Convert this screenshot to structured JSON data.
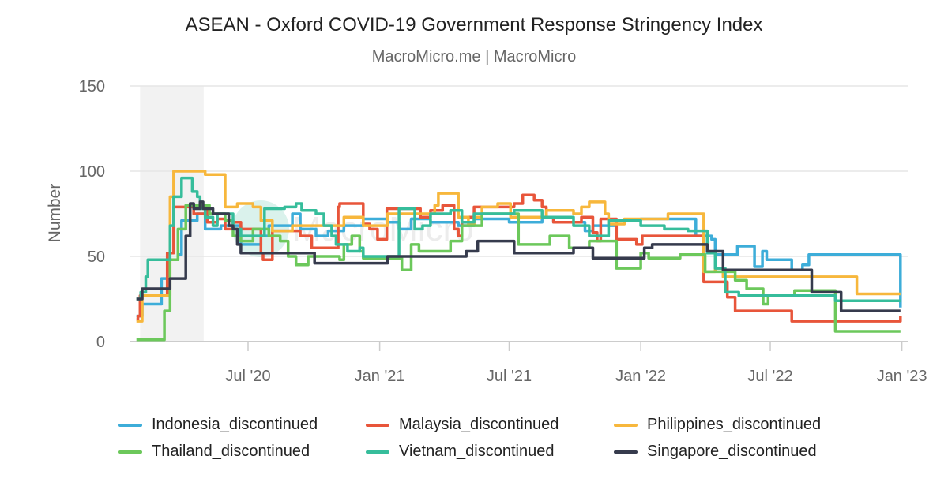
{
  "chart_data": {
    "type": "line",
    "step": true,
    "title": "ASEAN - Oxford COVID-19 Government Response Stringency Index",
    "subtitle": "MacroMicro.me | MacroMicro",
    "watermark": "MacroMicro",
    "xlabel": "",
    "ylabel": "Number",
    "ylim": [
      0,
      150
    ],
    "yticks": [
      "0",
      "50",
      "100",
      "150"
    ],
    "xlim": [
      "2020-01-20",
      "2023-01-05"
    ],
    "xticks": [
      {
        "date": "2020-07-01",
        "label": "Jul '20"
      },
      {
        "date": "2021-01-01",
        "label": "Jan '21"
      },
      {
        "date": "2021-07-01",
        "label": "Jul '21"
      },
      {
        "date": "2022-01-01",
        "label": "Jan '22"
      },
      {
        "date": "2022-07-01",
        "label": "Jul '22"
      },
      {
        "date": "2023-01-01",
        "label": "Jan '23"
      }
    ],
    "grid": true,
    "legend_position": "bottom",
    "shaded_periods": [
      [
        "2020-02-01",
        "2020-04-30"
      ]
    ],
    "series": [
      {
        "name": "Indonesia_discontinued",
        "color": "#3DADD9",
        "points": [
          [
            "2020-01-27",
            15
          ],
          [
            "2020-02-04",
            22
          ],
          [
            "2020-03-02",
            37
          ],
          [
            "2020-03-12",
            48
          ],
          [
            "2020-03-25",
            51
          ],
          [
            "2020-03-30",
            71
          ],
          [
            "2020-04-21",
            75
          ],
          [
            "2020-05-02",
            66
          ],
          [
            "2020-05-24",
            68
          ],
          [
            "2020-06-21",
            57
          ],
          [
            "2020-07-19",
            62
          ],
          [
            "2020-07-30",
            68
          ],
          [
            "2020-09-01",
            75
          ],
          [
            "2020-09-12",
            66
          ],
          [
            "2020-10-04",
            62
          ],
          [
            "2020-10-21",
            65
          ],
          [
            "2020-11-12",
            68
          ],
          [
            "2020-12-09",
            72
          ],
          [
            "2021-01-12",
            70
          ],
          [
            "2021-01-28",
            66
          ],
          [
            "2021-02-14",
            72
          ],
          [
            "2021-03-13",
            70
          ],
          [
            "2021-04-21",
            68
          ],
          [
            "2021-05-13",
            72
          ],
          [
            "2021-07-01",
            70
          ],
          [
            "2021-08-16",
            73
          ],
          [
            "2021-09-01",
            70
          ],
          [
            "2021-10-15",
            65
          ],
          [
            "2021-10-26",
            68
          ],
          [
            "2021-11-28",
            71
          ],
          [
            "2022-01-01",
            72
          ],
          [
            "2022-03-19",
            62
          ],
          [
            "2022-04-10",
            60
          ],
          [
            "2022-04-15",
            51
          ],
          [
            "2022-05-16",
            56
          ],
          [
            "2022-06-09",
            44
          ],
          [
            "2022-06-20",
            53
          ],
          [
            "2022-06-26",
            48
          ],
          [
            "2022-07-31",
            42
          ],
          [
            "2022-08-15",
            45
          ],
          [
            "2022-08-24",
            51
          ],
          [
            "2022-12-30",
            20
          ]
        ]
      },
      {
        "name": "Malaysia_discontinued",
        "color": "#E8553A",
        "points": [
          [
            "2020-01-27",
            13
          ],
          [
            "2020-01-29",
            15
          ],
          [
            "2020-02-01",
            27
          ],
          [
            "2020-03-10",
            52
          ],
          [
            "2020-03-19",
            79
          ],
          [
            "2020-04-16",
            75
          ],
          [
            "2020-05-02",
            78
          ],
          [
            "2020-05-05",
            70
          ],
          [
            "2020-05-19",
            72
          ],
          [
            "2020-05-30",
            66
          ],
          [
            "2020-06-10",
            70
          ],
          [
            "2020-06-21",
            66
          ],
          [
            "2020-07-19",
            52
          ],
          [
            "2020-07-22",
            48
          ],
          [
            "2020-08-04",
            65
          ],
          [
            "2020-09-12",
            62
          ],
          [
            "2020-09-28",
            55
          ],
          [
            "2020-11-04",
            79
          ],
          [
            "2020-11-06",
            81
          ],
          [
            "2020-12-09",
            69
          ],
          [
            "2020-12-18",
            66
          ],
          [
            "2020-12-29",
            60
          ],
          [
            "2021-01-11",
            78
          ],
          [
            "2021-02-27",
            73
          ],
          [
            "2021-03-13",
            77
          ],
          [
            "2021-03-30",
            80
          ],
          [
            "2021-04-15",
            66
          ],
          [
            "2021-04-21",
            62
          ],
          [
            "2021-04-26",
            73
          ],
          [
            "2021-05-13",
            79
          ],
          [
            "2021-07-08",
            81
          ],
          [
            "2021-07-20",
            86
          ],
          [
            "2021-08-05",
            83
          ],
          [
            "2021-08-16",
            79
          ],
          [
            "2021-08-22",
            73
          ],
          [
            "2021-09-01",
            70
          ],
          [
            "2021-10-10",
            73
          ],
          [
            "2021-10-26",
            64
          ],
          [
            "2021-11-01",
            59
          ],
          [
            "2021-11-06",
            72
          ],
          [
            "2021-11-28",
            60
          ],
          [
            "2021-12-26",
            57
          ],
          [
            "2022-01-03",
            62
          ],
          [
            "2022-03-30",
            35
          ],
          [
            "2022-05-02",
            26
          ],
          [
            "2022-05-13",
            18
          ],
          [
            "2022-07-31",
            12
          ],
          [
            "2022-12-29",
            12
          ],
          [
            "2022-12-30",
            15
          ]
        ]
      },
      {
        "name": "Philippines_discontinued",
        "color": "#F7B73C",
        "points": [
          [
            "2020-01-27",
            12
          ],
          [
            "2020-02-04",
            27
          ],
          [
            "2020-03-14",
            85
          ],
          [
            "2020-03-19",
            100
          ],
          [
            "2020-05-02",
            98
          ],
          [
            "2020-05-30",
            79
          ],
          [
            "2020-06-16",
            81
          ],
          [
            "2020-07-08",
            79
          ],
          [
            "2020-07-19",
            71
          ],
          [
            "2020-08-04",
            65
          ],
          [
            "2020-09-01",
            68
          ],
          [
            "2020-11-12",
            73
          ],
          [
            "2020-12-09",
            68
          ],
          [
            "2021-01-12",
            75
          ],
          [
            "2021-03-19",
            80
          ],
          [
            "2021-03-24",
            87
          ],
          [
            "2021-04-21",
            73
          ],
          [
            "2021-05-05",
            69
          ],
          [
            "2021-05-13",
            73
          ],
          [
            "2021-05-24",
            79
          ],
          [
            "2021-06-15",
            81
          ],
          [
            "2021-07-03",
            73
          ],
          [
            "2021-08-22",
            77
          ],
          [
            "2021-09-29",
            75
          ],
          [
            "2021-10-10",
            79
          ],
          [
            "2021-10-21",
            82
          ],
          [
            "2021-11-12",
            75
          ],
          [
            "2021-11-17",
            69
          ],
          [
            "2021-12-09",
            72
          ],
          [
            "2022-02-08",
            75
          ],
          [
            "2022-03-30",
            41
          ],
          [
            "2022-04-15",
            43
          ],
          [
            "2022-04-26",
            38
          ],
          [
            "2022-10-30",
            28
          ],
          [
            "2022-12-30",
            28
          ]
        ]
      },
      {
        "name": "Thailand_discontinued",
        "color": "#6CC85B",
        "points": [
          [
            "2020-01-27",
            1
          ],
          [
            "2020-03-06",
            18
          ],
          [
            "2020-03-14",
            48
          ],
          [
            "2020-03-25",
            66
          ],
          [
            "2020-04-05",
            80
          ],
          [
            "2020-05-08",
            75
          ],
          [
            "2020-05-30",
            71
          ],
          [
            "2020-06-10",
            62
          ],
          [
            "2020-06-21",
            59
          ],
          [
            "2020-07-08",
            66
          ],
          [
            "2020-07-30",
            62
          ],
          [
            "2020-08-15",
            59
          ],
          [
            "2020-08-26",
            50
          ],
          [
            "2020-09-06",
            45
          ],
          [
            "2020-09-23",
            50
          ],
          [
            "2020-11-06",
            48
          ],
          [
            "2020-11-12",
            57
          ],
          [
            "2020-11-23",
            62
          ],
          [
            "2020-12-04",
            53
          ],
          [
            "2020-12-09",
            49
          ],
          [
            "2021-02-01",
            42
          ],
          [
            "2021-02-14",
            57
          ],
          [
            "2021-02-25",
            53
          ],
          [
            "2021-04-10",
            59
          ],
          [
            "2021-04-26",
            68
          ],
          [
            "2021-05-24",
            75
          ],
          [
            "2021-07-14",
            57
          ],
          [
            "2021-08-27",
            62
          ],
          [
            "2021-09-23",
            55
          ],
          [
            "2021-10-21",
            59
          ],
          [
            "2021-11-28",
            43
          ],
          [
            "2022-01-01",
            52
          ],
          [
            "2022-01-12",
            49
          ],
          [
            "2022-02-25",
            51
          ],
          [
            "2022-04-01",
            41
          ],
          [
            "2022-05-13",
            36
          ],
          [
            "2022-05-29",
            31
          ],
          [
            "2022-06-21",
            22
          ],
          [
            "2022-06-28",
            27
          ],
          [
            "2022-08-04",
            30
          ],
          [
            "2022-09-30",
            6
          ],
          [
            "2022-12-30",
            6
          ]
        ]
      },
      {
        "name": "Vietnam_discontinued",
        "color": "#36BD9B",
        "points": [
          [
            "2020-01-27",
            25
          ],
          [
            "2020-02-02",
            29
          ],
          [
            "2020-02-09",
            38
          ],
          [
            "2020-02-12",
            48
          ],
          [
            "2020-03-14",
            68
          ],
          [
            "2020-03-19",
            85
          ],
          [
            "2020-03-30",
            96
          ],
          [
            "2020-04-14",
            88
          ],
          [
            "2020-04-21",
            85
          ],
          [
            "2020-04-25",
            78
          ],
          [
            "2020-05-02",
            73
          ],
          [
            "2020-05-13",
            68
          ],
          [
            "2020-05-19",
            75
          ],
          [
            "2020-06-10",
            66
          ],
          [
            "2020-06-21",
            62
          ],
          [
            "2020-07-24",
            78
          ],
          [
            "2020-08-21",
            79
          ],
          [
            "2020-09-06",
            81
          ],
          [
            "2020-09-14",
            77
          ],
          [
            "2020-10-04",
            75
          ],
          [
            "2020-10-15",
            68
          ],
          [
            "2020-10-26",
            62
          ],
          [
            "2020-11-01",
            57
          ],
          [
            "2020-11-17",
            53
          ],
          [
            "2020-12-04",
            55
          ],
          [
            "2020-12-09",
            50
          ],
          [
            "2021-01-28",
            78
          ],
          [
            "2021-02-19",
            66
          ],
          [
            "2021-03-02",
            68
          ],
          [
            "2021-03-13",
            75
          ],
          [
            "2021-04-10",
            77
          ],
          [
            "2021-04-26",
            70
          ],
          [
            "2021-05-13",
            75
          ],
          [
            "2021-07-08",
            77
          ],
          [
            "2021-08-16",
            73
          ],
          [
            "2021-09-29",
            68
          ],
          [
            "2021-10-21",
            62
          ],
          [
            "2021-11-17",
            71
          ],
          [
            "2022-01-01",
            68
          ],
          [
            "2022-02-03",
            66
          ],
          [
            "2022-03-08",
            65
          ],
          [
            "2022-04-04",
            52
          ],
          [
            "2022-04-15",
            43
          ],
          [
            "2022-04-29",
            29
          ],
          [
            "2022-05-18",
            27
          ],
          [
            "2022-09-30",
            24
          ],
          [
            "2022-12-30",
            24
          ]
        ]
      },
      {
        "name": "Singapore_discontinued",
        "color": "#363B4D",
        "points": [
          [
            "2020-01-27",
            25
          ],
          [
            "2020-02-04",
            31
          ],
          [
            "2020-03-14",
            37
          ],
          [
            "2020-04-05",
            62
          ],
          [
            "2020-04-11",
            81
          ],
          [
            "2020-04-16",
            78
          ],
          [
            "2020-04-25",
            82
          ],
          [
            "2020-04-29",
            78
          ],
          [
            "2020-05-13",
            75
          ],
          [
            "2020-06-04",
            68
          ],
          [
            "2020-06-10",
            66
          ],
          [
            "2020-06-16",
            57
          ],
          [
            "2020-06-21",
            52
          ],
          [
            "2020-10-02",
            46
          ],
          [
            "2021-01-12",
            50
          ],
          [
            "2021-05-02",
            53
          ],
          [
            "2021-05-18",
            59
          ],
          [
            "2021-07-08",
            52
          ],
          [
            "2021-09-29",
            55
          ],
          [
            "2021-10-26",
            49
          ],
          [
            "2022-01-06",
            55
          ],
          [
            "2022-01-17",
            57
          ],
          [
            "2022-04-04",
            53
          ],
          [
            "2022-04-26",
            42
          ],
          [
            "2022-08-28",
            29
          ],
          [
            "2022-10-08",
            18
          ],
          [
            "2022-12-30",
            18
          ]
        ]
      }
    ]
  }
}
